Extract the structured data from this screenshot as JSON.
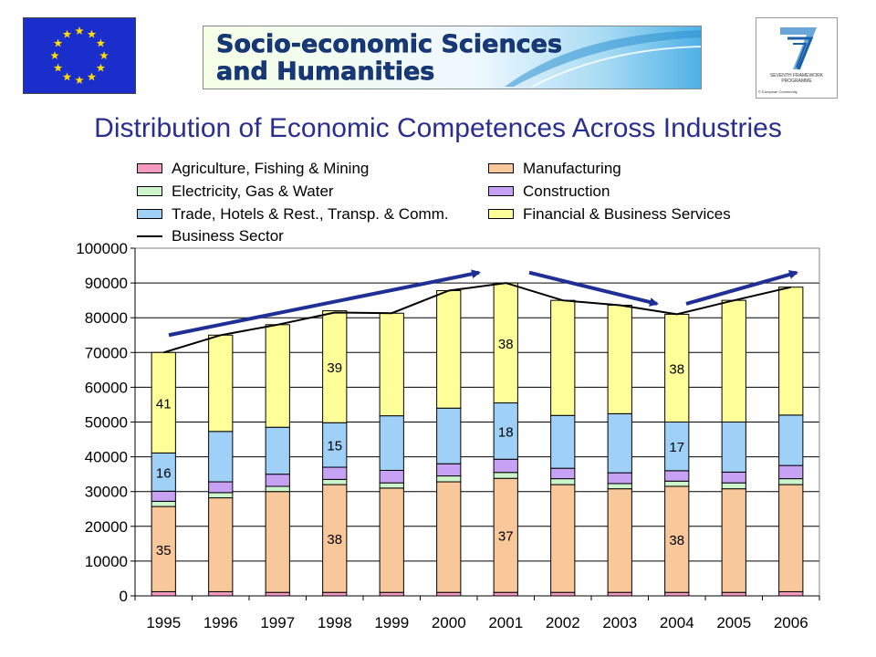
{
  "header": {
    "eu_flag_icon": "eu-flag-icon",
    "banner": {
      "line1": "Socio-economic Sciences",
      "line2": "and Humanities"
    },
    "fp7_logo_icon": "fp7-logo-icon",
    "fp7_caption_line1": "SEVENTH FRAMEWORK",
    "fp7_caption_line2": "PROGRAMME",
    "fp7_copyright": "© European Community"
  },
  "colors": {
    "agriculture": "#f49ac0",
    "manufacturing": "#f8c89a",
    "electricity": "#ccf5cc",
    "construction": "#c7a1f3",
    "trade": "#9ed0f8",
    "financial": "#ffff99",
    "business_line": "#000000",
    "arrows": "#1f2f95",
    "title": "#2a2f8f"
  },
  "chart_data": {
    "type": "bar",
    "stacked": true,
    "title": "Distribution of Economic Competences Across Industries",
    "xlabel": "",
    "ylabel": "",
    "ylim": [
      0,
      100000
    ],
    "yticks": [
      0,
      10000,
      20000,
      30000,
      40000,
      50000,
      60000,
      70000,
      80000,
      90000,
      100000
    ],
    "grid": true,
    "legend_position": "top",
    "categories": [
      "1995",
      "1996",
      "1997",
      "1998",
      "1999",
      "2000",
      "2001",
      "2002",
      "2003",
      "2004",
      "2005",
      "2006"
    ],
    "series": [
      {
        "name": "Agriculture, Fishing & Mining",
        "key": "agriculture",
        "values": [
          1200,
          1200,
          1000,
          1000,
          1000,
          1000,
          1000,
          1000,
          1000,
          1000,
          1000,
          1200
        ]
      },
      {
        "name": "Manufacturing",
        "key": "manufacturing",
        "values": [
          24500,
          27000,
          29000,
          31000,
          30000,
          31800,
          32800,
          31000,
          29800,
          30500,
          29800,
          30800
        ]
      },
      {
        "name": "Electricity, Gas & Water",
        "key": "electricity",
        "values": [
          1500,
          1500,
          1500,
          1500,
          1500,
          1700,
          1700,
          1700,
          1500,
          1500,
          1700,
          1700
        ]
      },
      {
        "name": "Construction",
        "key": "construction",
        "values": [
          2900,
          3100,
          3500,
          3500,
          3600,
          3500,
          3800,
          3000,
          3100,
          3000,
          3100,
          3800
        ]
      },
      {
        "name": "Trade, Hotels & Rest., Transp. & Comm.",
        "key": "trade",
        "values": [
          11000,
          14500,
          13500,
          12800,
          15700,
          16000,
          16200,
          15200,
          17000,
          14000,
          14400,
          14500
        ]
      },
      {
        "name": "Financial & Business Services",
        "key": "financial",
        "values": [
          28900,
          27700,
          29500,
          32200,
          29500,
          33800,
          34500,
          33100,
          31200,
          31000,
          35000,
          36800
        ]
      }
    ],
    "line_series": {
      "name": "Business Sector",
      "values": [
        70000,
        75000,
        78000,
        81500,
        81300,
        87800,
        90000,
        85000,
        83600,
        81000,
        85000,
        88800
      ]
    },
    "annotations": [
      {
        "category": "1995",
        "series": "financial",
        "label": "41"
      },
      {
        "category": "1995",
        "series": "trade",
        "label": "16"
      },
      {
        "category": "1995",
        "series": "manufacturing",
        "label": "35"
      },
      {
        "category": "1998",
        "series": "financial",
        "label": "39"
      },
      {
        "category": "1998",
        "series": "trade",
        "label": "15"
      },
      {
        "category": "1998",
        "series": "manufacturing",
        "label": "38"
      },
      {
        "category": "2001",
        "series": "financial",
        "label": "38"
      },
      {
        "category": "2001",
        "series": "trade",
        "label": "18"
      },
      {
        "category": "2001",
        "series": "manufacturing",
        "label": "37"
      },
      {
        "category": "2004",
        "series": "financial",
        "label": "38"
      },
      {
        "category": "2004",
        "series": "trade",
        "label": "17"
      },
      {
        "category": "2004",
        "series": "manufacturing",
        "label": "38"
      }
    ],
    "trend_arrows": [
      {
        "from": [
          "1995",
          75000
        ],
        "to": [
          "2001",
          93000
        ]
      },
      {
        "from": [
          "2001",
          93000
        ],
        "to": [
          "2004",
          84000
        ]
      },
      {
        "from": [
          "2004",
          84000
        ],
        "to": [
          "2006",
          93000
        ]
      }
    ]
  }
}
